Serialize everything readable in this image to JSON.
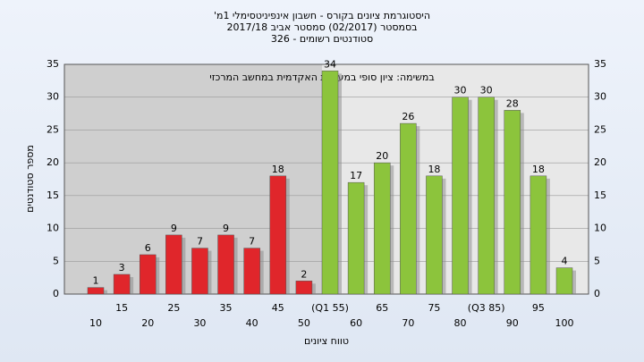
{
  "chart_data": {
    "type": "bar",
    "title": [
      "היסטוגרמת ציונים בקורס - חשבון אינפיניטסימלי 1מ'",
      "בסמסטר  (02/2017)  סמסטר אביב 2017/18",
      "סטודנטים רשומים - 326"
    ],
    "annotation": "במשימה: ציון סופי במערכת האקדמית במחשב המרכזי",
    "y_label": "מספר סטודנטים",
    "x_label": "טווח ציונים",
    "categories": [
      "10",
      "15",
      "20",
      "25",
      "30",
      "35",
      "40",
      "45",
      "50",
      "(Q1 55)",
      "60",
      "65",
      "70",
      "75",
      "80",
      "(Q3 85)",
      "90",
      "95",
      "100"
    ],
    "values": [
      1,
      3,
      6,
      9,
      7,
      9,
      7,
      18,
      2,
      34,
      17,
      20,
      26,
      18,
      30,
      30,
      28,
      18,
      4
    ],
    "colors": [
      "#e0262b",
      "#e0262b",
      "#e0262b",
      "#e0262b",
      "#e0262b",
      "#e0262b",
      "#e0262b",
      "#e0262b",
      "#e0262b",
      "#8cc43c",
      "#8cc43c",
      "#8cc43c",
      "#8cc43c",
      "#8cc43c",
      "#8cc43c",
      "#8cc43c",
      "#8cc43c",
      "#8cc43c",
      "#8cc43c"
    ],
    "ylim": [
      0,
      35
    ],
    "yticks": [
      0,
      5,
      10,
      15,
      20,
      25,
      30,
      35
    ],
    "grid": true
  }
}
